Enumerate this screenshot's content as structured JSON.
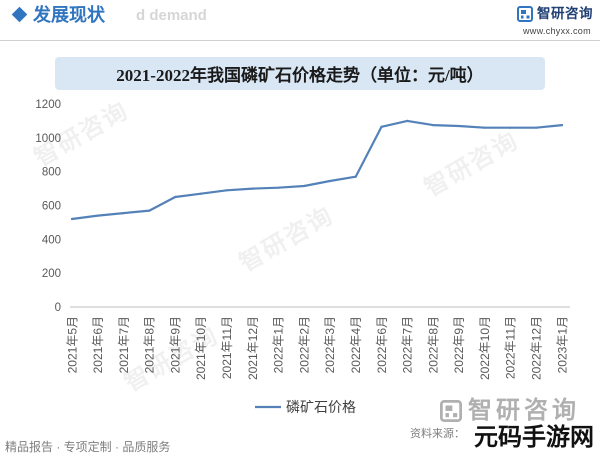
{
  "header": {
    "section_title": "发展现状",
    "section_title_faded": "d demand",
    "logo_text": "智研咨询",
    "website": "www.chyxx.com"
  },
  "colors": {
    "accent": "#2f75c0",
    "title_bar": "#d9e7f5",
    "logo_text": "#1f3f73"
  },
  "icons": {
    "section_marker": "diamond-icon",
    "logo": "zhiyan-logo-icon"
  },
  "chart_data": {
    "type": "line",
    "title": "2021-2022年我国磷矿石价格走势（单位：元/吨）",
    "categories": [
      "2021年5月",
      "2021年6月",
      "2021年7月",
      "2021年8月",
      "2021年9月",
      "2021年10月",
      "2021年11月",
      "2021年12月",
      "2022年1月",
      "2022年2月",
      "2022年3月",
      "2022年4月",
      "2022年6月",
      "2022年7月",
      "2022年8月",
      "2022年9月",
      "2022年10月",
      "2022年11月",
      "2022年12月",
      "2023年1月"
    ],
    "series": [
      {
        "name": "磷矿石价格",
        "color": "#5482b8",
        "values": [
          520,
          540,
          555,
          570,
          650,
          670,
          690,
          700,
          705,
          715,
          745,
          770,
          1065,
          1100,
          1075,
          1070,
          1060,
          1060,
          1060,
          1075
        ]
      }
    ],
    "ylim": [
      0,
      1200
    ],
    "yticks": [
      0,
      200,
      400,
      600,
      800,
      1000,
      1200
    ],
    "grid": false,
    "legend": "bottom-center"
  },
  "footer": {
    "tagline": "精品报告 · 专项定制 · 品质服务",
    "source_label": "资料来源：",
    "logo_text": "智研咨询"
  },
  "watermarks": {
    "brand": "智研咨询",
    "site": "元码手游网"
  }
}
